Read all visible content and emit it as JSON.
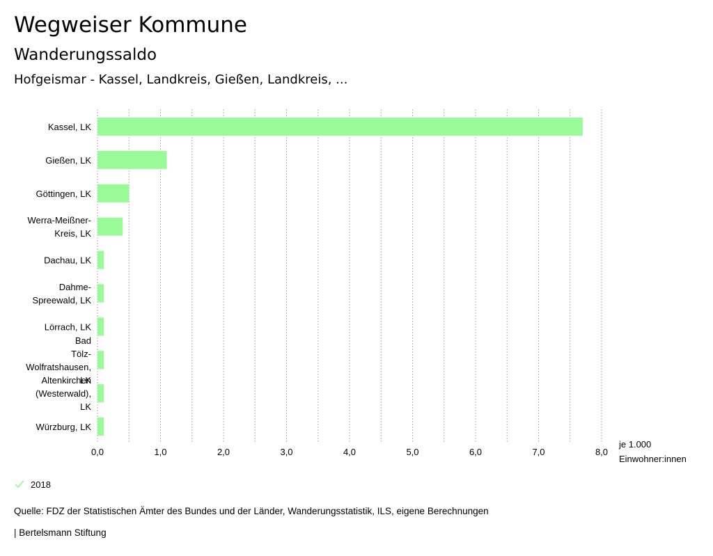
{
  "header": {
    "title": "Wegweiser Kommune",
    "subtitle": "Wanderungssaldo",
    "region": "Hofgeismar - Kassel, Landkreis, Gießen, Landkreis, ..."
  },
  "chart_data": {
    "type": "bar",
    "orientation": "horizontal",
    "categories": [
      [
        "Kassel, LK"
      ],
      [
        "Gießen, LK"
      ],
      [
        "Göttingen, LK"
      ],
      [
        "Werra-Meißner-",
        "Kreis, LK"
      ],
      [
        "Dachau, LK"
      ],
      [
        "Dahme-",
        "Spreewald, LK"
      ],
      [
        "Lörrach, LK"
      ],
      [
        "Bad",
        "Tölz-",
        "Wolfratshausen,",
        "LK"
      ],
      [
        "Altenkirchen",
        "(Westerwald),",
        "LK"
      ],
      [
        "Würzburg, LK"
      ]
    ],
    "series": [
      {
        "name": "2018",
        "values": [
          7.7,
          1.1,
          0.5,
          0.4,
          0.1,
          0.1,
          0.1,
          0.1,
          0.1,
          0.1
        ]
      }
    ],
    "xlim": [
      0,
      8
    ],
    "xticks": [
      "0,0",
      "1,0",
      "2,0",
      "3,0",
      "4,0",
      "5,0",
      "6,0",
      "7,0",
      "8,0"
    ],
    "unit_label": [
      "je 1.000",
      "Einwohner:innen"
    ],
    "grid": true,
    "bar_color": "#98fb98"
  },
  "legend": {
    "label": "2018",
    "color": "#98fb98"
  },
  "footer": {
    "source": "Quelle: FDZ der Statistischen Ämter des Bundes und der Länder, Wanderungsstatistik, ILS, eigene Berechnungen",
    "brand": "| Bertelsmann Stiftung"
  }
}
